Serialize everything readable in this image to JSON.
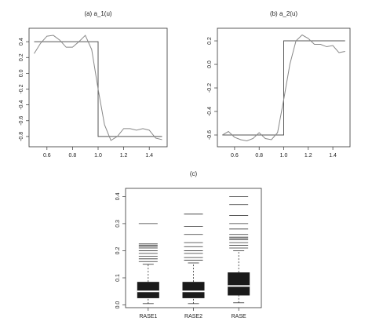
{
  "chart_data": [
    {
      "type": "line",
      "title": "(a)  a_1(u)",
      "xlim": [
        0.46,
        1.54
      ],
      "ylim": [
        -0.93,
        0.57
      ],
      "xticks": [
        0.6,
        0.8,
        {
          "value": 1,
          "label": "1.0"
        },
        1.2,
        1.4
      ],
      "yticks": [
        0.4,
        0.2,
        {
          "value": 0,
          "label": "0.0"
        },
        -0.2,
        -0.4,
        -0.6,
        -0.8
      ],
      "series": [
        {
          "color": "#555555",
          "x": [
            0.5,
            1.0,
            1.0,
            1.5
          ],
          "values": [
            0.4,
            0.4,
            -0.8,
            -0.8
          ]
        },
        {
          "color": "#888888",
          "x": [
            0.5,
            0.55,
            0.6,
            0.65,
            0.7,
            0.75,
            0.8,
            0.85,
            0.9,
            0.95,
            1.0,
            1.05,
            1.1,
            1.15,
            1.2,
            1.25,
            1.3,
            1.35,
            1.4,
            1.45,
            1.5
          ],
          "values": [
            0.25,
            0.38,
            0.47,
            0.48,
            0.42,
            0.33,
            0.33,
            0.4,
            0.48,
            0.3,
            -0.2,
            -0.65,
            -0.85,
            -0.8,
            -0.7,
            -0.7,
            -0.72,
            -0.7,
            -0.72,
            -0.82,
            -0.84
          ]
        }
      ]
    },
    {
      "type": "line",
      "title": "(b)  a_2(u)",
      "xlim": [
        0.46,
        1.54
      ],
      "ylim": [
        -0.7,
        0.307
      ],
      "xticks": [
        0.6,
        0.8,
        {
          "value": 1,
          "label": "1.0"
        },
        1.2,
        1.4
      ],
      "yticks": [
        0.2,
        {
          "value": 0,
          "label": "0.0"
        },
        -0.2,
        -0.4,
        -0.6
      ],
      "series": [
        {
          "color": "#555555",
          "x": [
            0.5,
            1.0,
            1.0,
            1.5
          ],
          "values": [
            -0.6,
            -0.6,
            0.2,
            0.2
          ]
        },
        {
          "color": "#888888",
          "x": [
            0.5,
            0.55,
            0.6,
            0.65,
            0.7,
            0.75,
            0.8,
            0.85,
            0.9,
            0.95,
            1.0,
            1.05,
            1.1,
            1.15,
            1.2,
            1.25,
            1.3,
            1.35,
            1.4,
            1.45,
            1.5
          ],
          "values": [
            -0.6,
            -0.57,
            -0.62,
            -0.64,
            -0.65,
            -0.63,
            -0.58,
            -0.63,
            -0.64,
            -0.58,
            -0.3,
            0.0,
            0.2,
            0.25,
            0.22,
            0.17,
            0.17,
            0.15,
            0.16,
            0.1,
            0.11
          ]
        }
      ]
    },
    {
      "type": "box",
      "title": "(c)",
      "ylim": [
        -0.01,
        0.43
      ],
      "yticks": [
        {
          "value": 0,
          "label": "0.0"
        },
        0.1,
        0.2,
        0.3,
        0.4
      ],
      "categories": [
        "RASE1",
        "RASE2",
        "RASE"
      ],
      "color": "#1a1a1a",
      "median_color": "#ffffff",
      "boxes": [
        {
          "min": 0.005,
          "q1": 0.025,
          "median": 0.05,
          "q3": 0.085,
          "max": 0.15,
          "outliers": [
            0.16,
            0.17,
            0.18,
            0.19,
            0.2,
            0.21,
            0.215,
            0.22,
            0.225,
            0.3
          ]
        },
        {
          "min": 0.005,
          "q1": 0.025,
          "median": 0.05,
          "q3": 0.085,
          "max": 0.155,
          "outliers": [
            0.165,
            0.175,
            0.19,
            0.2,
            0.215,
            0.23,
            0.26,
            0.29,
            0.335
          ]
        },
        {
          "min": 0.008,
          "q1": 0.035,
          "median": 0.07,
          "q3": 0.12,
          "max": 0.2,
          "outliers": [
            0.21,
            0.22,
            0.23,
            0.24,
            0.245,
            0.25,
            0.26,
            0.28,
            0.3,
            0.33,
            0.37,
            0.4
          ]
        }
      ]
    }
  ]
}
